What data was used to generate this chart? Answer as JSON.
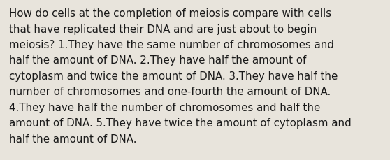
{
  "background_color": "#e8e4dc",
  "text_color": "#1a1a1a",
  "font_size": 10.8,
  "lines": [
    "How do cells at the completion of meiosis compare with cells",
    "that have replicated their DNA and are just about to begin",
    "meiosis? 1.They have the same number of chromosomes and",
    "half the amount of DNA. 2.They have half the amount of",
    "cytoplasm and twice the amount of DNA. 3.They have half the",
    "number of chromosomes and one-fourth the amount of DNA.",
    "4.They have half the number of chromosomes and half the",
    "amount of DNA. 5.They have twice the amount of cytoplasm and",
    "half the amount of DNA."
  ]
}
